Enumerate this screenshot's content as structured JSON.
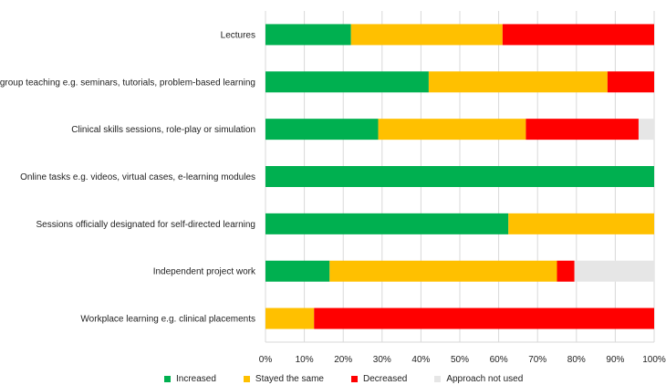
{
  "colors": {
    "increased": "#00b050",
    "stayed": "#ffc000",
    "decreased": "#ff0000",
    "not_used": "#e6e6e6",
    "grid": "#d9d9d9",
    "axis": "#999999"
  },
  "chart_data": {
    "type": "bar",
    "orientation": "horizontal",
    "stacked": "percent",
    "title": "",
    "xlabel": "",
    "ylabel": "",
    "xlim": [
      0,
      100
    ],
    "grid": true,
    "legend_position": "bottom",
    "x_ticks": [
      "0%",
      "10%",
      "20%",
      "30%",
      "40%",
      "50%",
      "60%",
      "70%",
      "80%",
      "90%",
      "100%"
    ],
    "categories": [
      "Lectures",
      "Small group teaching e.g. seminars, tutorials, problem-based learning",
      "Clinical skills sessions, role-play or simulation",
      "Online tasks e.g. videos, virtual cases, e-learning modules",
      "Sessions officially designated for self-directed learning",
      "Independent project work",
      "Workplace learning e.g. clinical placements"
    ],
    "series": [
      {
        "name": "Increased",
        "color_key": "increased",
        "values": [
          22,
          42,
          29,
          100,
          62.5,
          16.5,
          0
        ]
      },
      {
        "name": "Stayed the same",
        "color_key": "stayed",
        "values": [
          39,
          46,
          38,
          0,
          37.5,
          58.5,
          12.5
        ]
      },
      {
        "name": "Decreased",
        "color_key": "decreased",
        "values": [
          39,
          12,
          29,
          0,
          0,
          4.5,
          87.5
        ]
      },
      {
        "name": "Approach not used",
        "color_key": "not_used",
        "values": [
          0,
          0,
          4,
          0,
          0,
          20.5,
          0
        ]
      }
    ]
  }
}
